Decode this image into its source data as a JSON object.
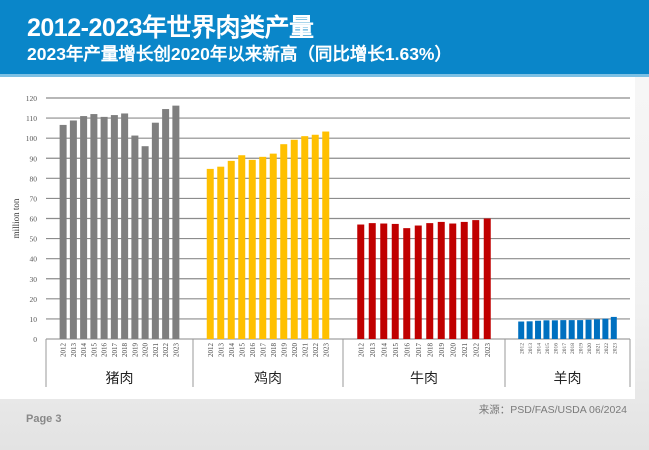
{
  "header": {
    "title": "2012-2023年世界肉类产量",
    "subtitle": "2023年产量增长创2020年以来新高（同比增长1.63%）"
  },
  "footer": {
    "page": "Page 3",
    "source": "来源：PSD/FAS/USDA 06/2024"
  },
  "chart_data": {
    "type": "bar",
    "title": "",
    "xlabel": "",
    "ylabel": "million ton",
    "ylim": [
      0,
      120
    ],
    "yticks": [
      0,
      10,
      20,
      30,
      40,
      50,
      60,
      70,
      80,
      90,
      100,
      110,
      120
    ],
    "grid": true,
    "legend": "none",
    "categories": [
      "2012",
      "2013",
      "2014",
      "2015",
      "2016",
      "2017",
      "2018",
      "2019",
      "2020",
      "2021",
      "2022",
      "2023"
    ],
    "series": [
      {
        "name": "猪肉",
        "color": "#7f7f7f",
        "values": [
          106.6,
          108.8,
          111.0,
          112.0,
          110.6,
          111.5,
          112.3,
          101.3,
          96.0,
          107.7,
          114.5,
          116.2
        ]
      },
      {
        "name": "鸡肉",
        "color": "#ffc000",
        "values": [
          84.7,
          85.8,
          88.7,
          91.5,
          89.2,
          90.7,
          92.3,
          97.0,
          99.2,
          101.0,
          101.7,
          103.3
        ]
      },
      {
        "name": "牛肉",
        "color": "#c00000",
        "values": [
          57.0,
          57.7,
          57.5,
          57.3,
          55.2,
          56.5,
          57.7,
          58.3,
          57.5,
          58.3,
          59.2,
          60.0
        ]
      },
      {
        "name": "羊肉",
        "color": "#0070c0",
        "values": [
          8.7,
          8.8,
          9.1,
          9.3,
          9.3,
          9.4,
          9.4,
          9.4,
          9.6,
          9.8,
          10.1,
          11.0
        ]
      }
    ]
  }
}
